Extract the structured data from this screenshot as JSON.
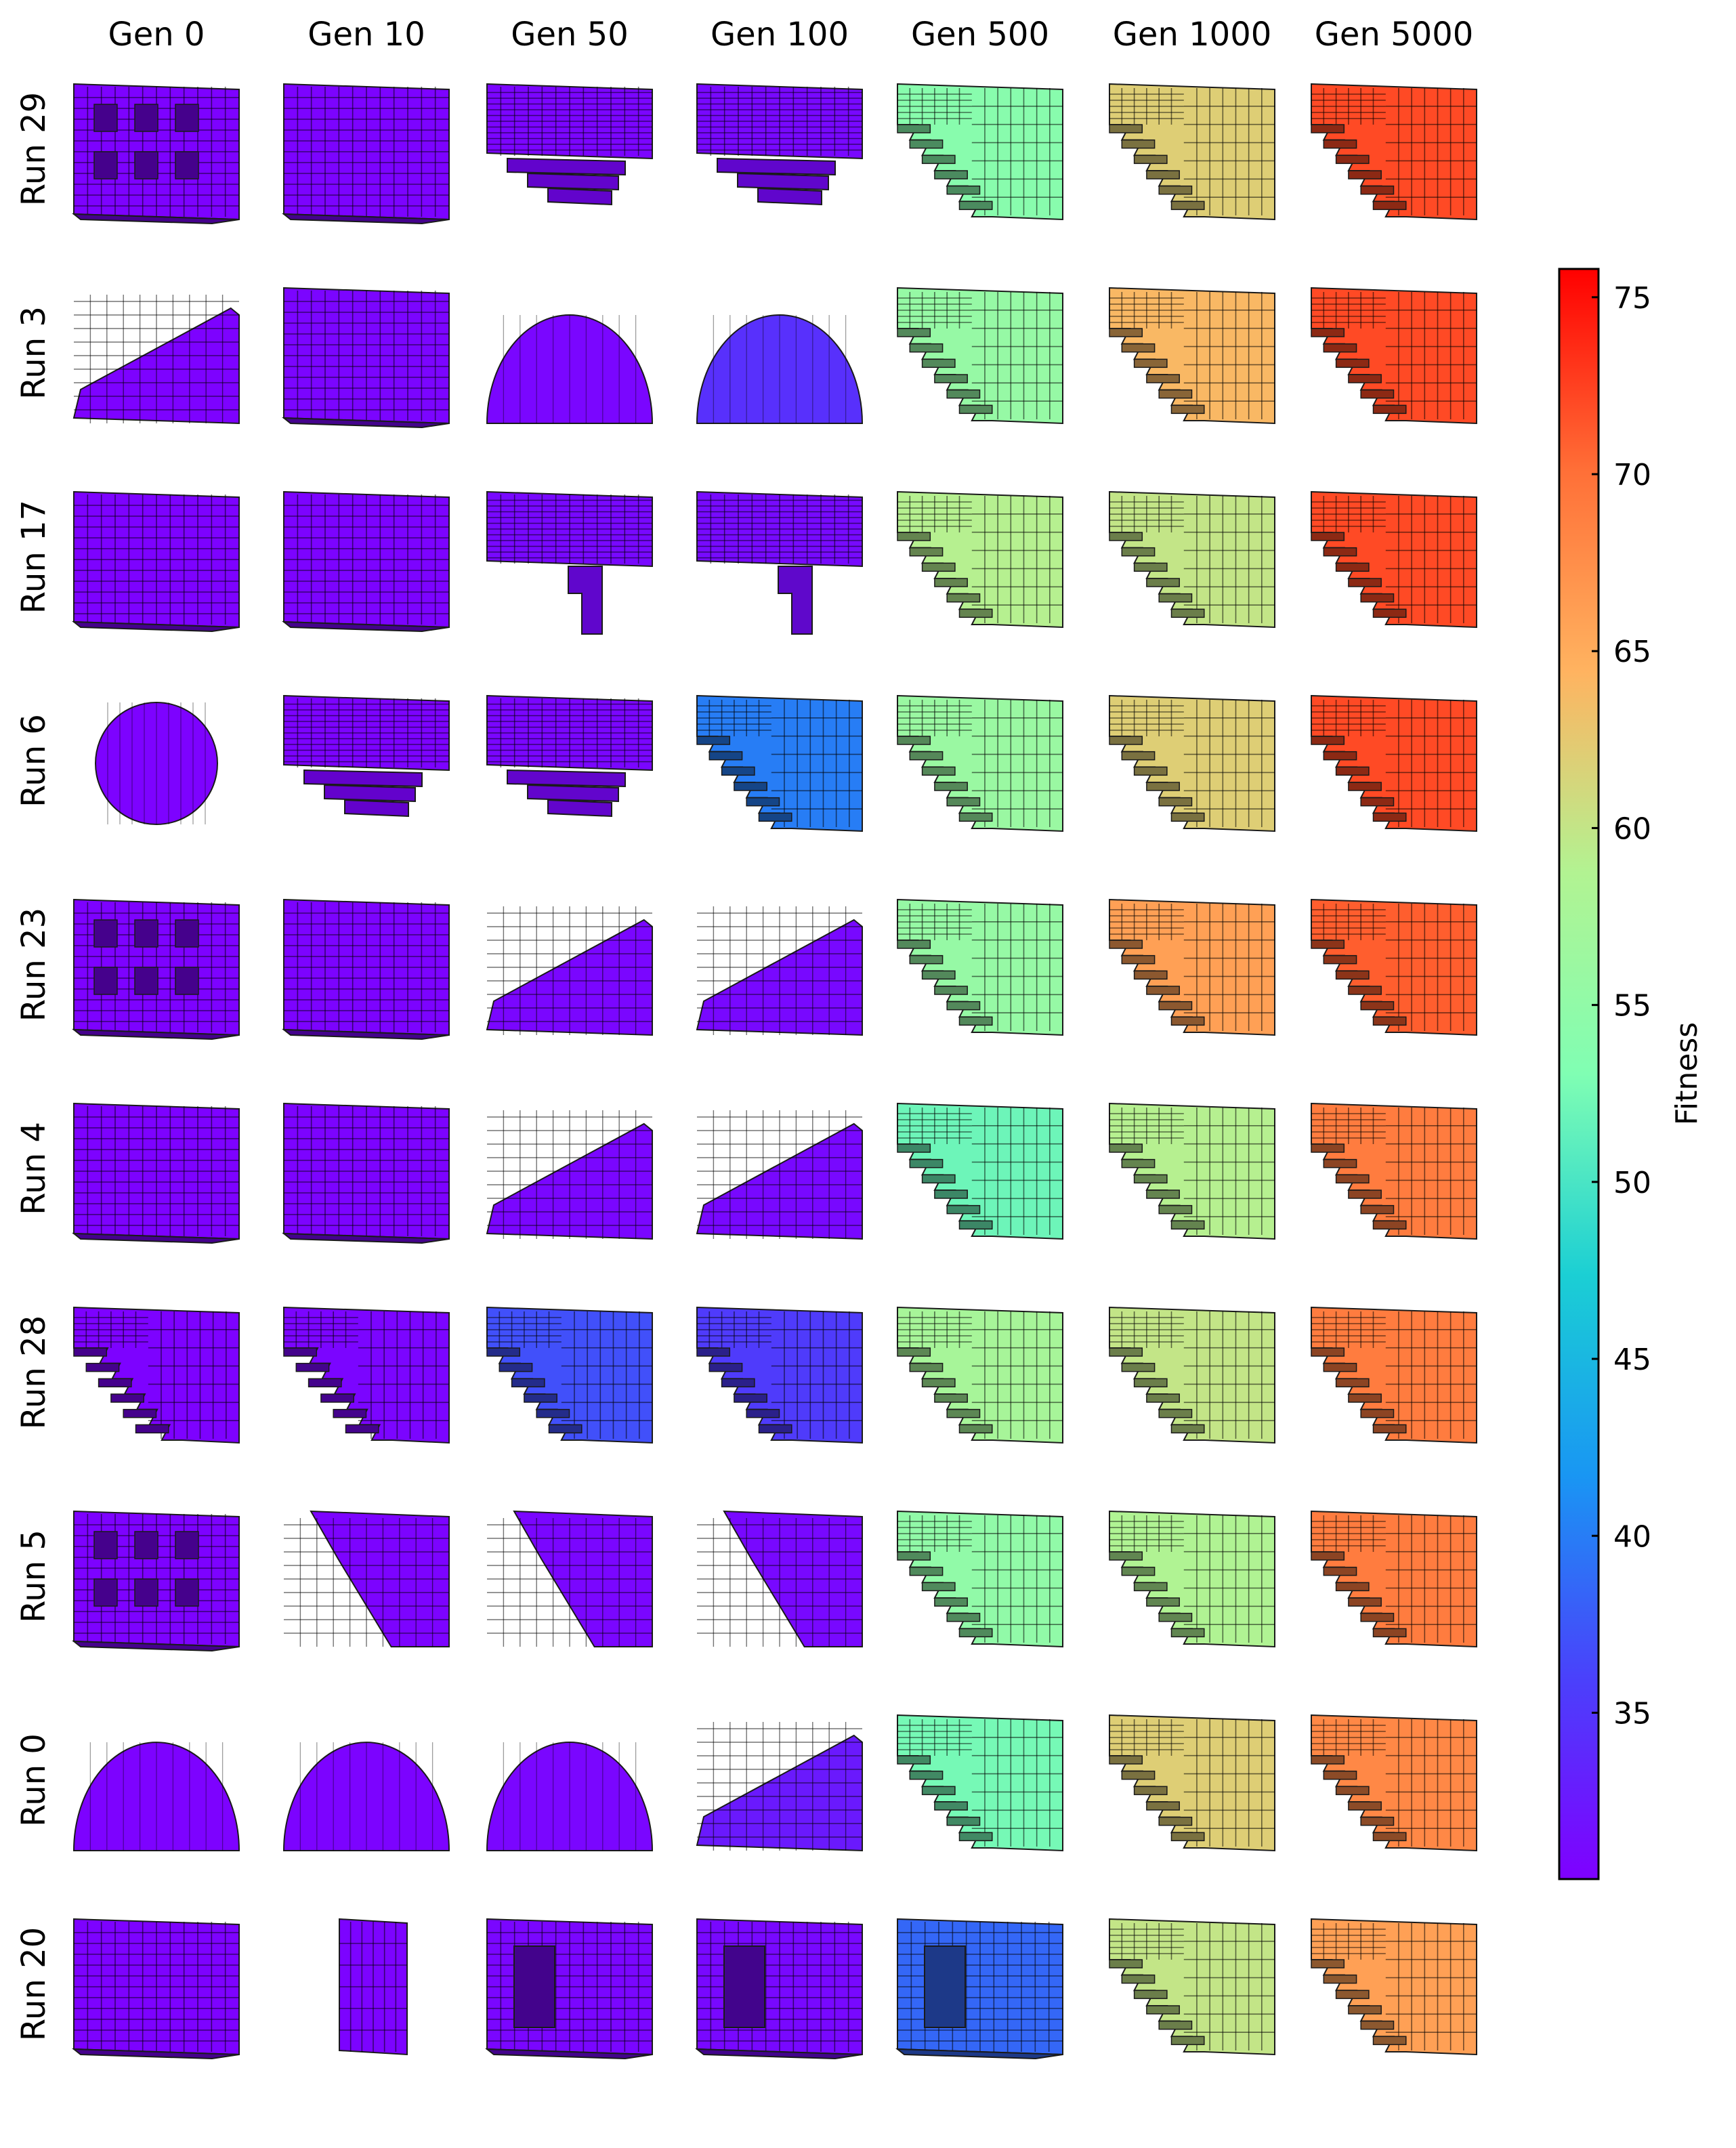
{
  "columns": [
    "Gen 0",
    "Gen 10",
    "Gen 50",
    "Gen 100",
    "Gen 500",
    "Gen 1000",
    "Gen 5000"
  ],
  "rows": [
    {
      "label": "Run 29",
      "cells": [
        {
          "fitness": 30.5,
          "shape": "holey-cube"
        },
        {
          "fitness": 30.6,
          "shape": "cube"
        },
        {
          "fitness": 30.7,
          "shape": "cube-hanging-steps"
        },
        {
          "fitness": 31.0,
          "shape": "cube-hanging-steps"
        },
        {
          "fitness": 54.0,
          "shape": "staircase-overhang"
        },
        {
          "fitness": 62.0,
          "shape": "staircase-overhang"
        },
        {
          "fitness": 72.0,
          "shape": "staircase-overhang"
        }
      ]
    },
    {
      "label": "Run 3",
      "cells": [
        {
          "fitness": 30.5,
          "shape": "ramp"
        },
        {
          "fitness": 30.7,
          "shape": "cube"
        },
        {
          "fitness": 30.8,
          "shape": "dome-quarter"
        },
        {
          "fitness": 34.5,
          "shape": "dome"
        },
        {
          "fitness": 55.5,
          "shape": "staircase-overhang"
        },
        {
          "fitness": 64.0,
          "shape": "staircase-overhang"
        },
        {
          "fitness": 72.0,
          "shape": "staircase-overhang"
        }
      ]
    },
    {
      "label": "Run 17",
      "cells": [
        {
          "fitness": 30.5,
          "shape": "cube"
        },
        {
          "fitness": 30.6,
          "shape": "cube"
        },
        {
          "fitness": 31.0,
          "shape": "cube-pillar"
        },
        {
          "fitness": 31.2,
          "shape": "cube-pillar"
        },
        {
          "fitness": 59.0,
          "shape": "staircase-overhang"
        },
        {
          "fitness": 60.0,
          "shape": "staircase-overhang"
        },
        {
          "fitness": 72.0,
          "shape": "staircase-overhang"
        }
      ]
    },
    {
      "label": "Run 6",
      "cells": [
        {
          "fitness": 30.5,
          "shape": "disc"
        },
        {
          "fitness": 30.6,
          "shape": "cube-hanging-steps"
        },
        {
          "fitness": 30.8,
          "shape": "cube-hanging-steps"
        },
        {
          "fitness": 40.0,
          "shape": "staircase-overhang"
        },
        {
          "fitness": 56.0,
          "shape": "staircase-overhang"
        },
        {
          "fitness": 62.0,
          "shape": "staircase-overhang"
        },
        {
          "fitness": 72.0,
          "shape": "staircase-overhang"
        }
      ]
    },
    {
      "label": "Run 23",
      "cells": [
        {
          "fitness": 30.5,
          "shape": "holey-cube"
        },
        {
          "fitness": 30.6,
          "shape": "cube"
        },
        {
          "fitness": 30.8,
          "shape": "ramp"
        },
        {
          "fitness": 31.0,
          "shape": "ramp"
        },
        {
          "fitness": 55.5,
          "shape": "staircase-overhang"
        },
        {
          "fitness": 66.0,
          "shape": "staircase-overhang"
        },
        {
          "fitness": 71.0,
          "shape": "staircase-overhang"
        }
      ]
    },
    {
      "label": "Run 4",
      "cells": [
        {
          "fitness": 30.5,
          "shape": "cube"
        },
        {
          "fitness": 30.6,
          "shape": "cube"
        },
        {
          "fitness": 30.8,
          "shape": "ramp"
        },
        {
          "fitness": 31.0,
          "shape": "ramp"
        },
        {
          "fitness": 52.0,
          "shape": "staircase-overhang"
        },
        {
          "fitness": 59.0,
          "shape": "staircase-overhang"
        },
        {
          "fitness": 69.0,
          "shape": "staircase-overhang"
        }
      ]
    },
    {
      "label": "Run 28",
      "cells": [
        {
          "fitness": 30.5,
          "shape": "inverted-stairs"
        },
        {
          "fitness": 30.7,
          "shape": "inverted-stairs"
        },
        {
          "fitness": 37.0,
          "shape": "staircase-overhang"
        },
        {
          "fitness": 35.5,
          "shape": "staircase-overhang"
        },
        {
          "fitness": 57.5,
          "shape": "staircase-overhang"
        },
        {
          "fitness": 60.0,
          "shape": "staircase-overhang"
        },
        {
          "fitness": 69.0,
          "shape": "staircase-overhang"
        }
      ]
    },
    {
      "label": "Run 5",
      "cells": [
        {
          "fitness": 30.5,
          "shape": "holey-cube"
        },
        {
          "fitness": 30.6,
          "shape": "wedge"
        },
        {
          "fitness": 30.8,
          "shape": "wedge"
        },
        {
          "fitness": 31.0,
          "shape": "wedge"
        },
        {
          "fitness": 55.0,
          "shape": "staircase-overhang"
        },
        {
          "fitness": 58.5,
          "shape": "staircase-overhang"
        },
        {
          "fitness": 69.0,
          "shape": "staircase-overhang"
        }
      ]
    },
    {
      "label": "Run 0",
      "cells": [
        {
          "fitness": 30.5,
          "shape": "dome"
        },
        {
          "fitness": 30.6,
          "shape": "dome"
        },
        {
          "fitness": 30.8,
          "shape": "dome"
        },
        {
          "fitness": 32.5,
          "shape": "ramp"
        },
        {
          "fitness": 52.5,
          "shape": "staircase-overhang"
        },
        {
          "fitness": 62.0,
          "shape": "staircase-overhang"
        },
        {
          "fitness": 68.0,
          "shape": "staircase-overhang"
        }
      ]
    },
    {
      "label": "Run 20",
      "cells": [
        {
          "fitness": 30.5,
          "shape": "cube"
        },
        {
          "fitness": 30.6,
          "shape": "slab"
        },
        {
          "fitness": 30.8,
          "shape": "cube-window"
        },
        {
          "fitness": 31.0,
          "shape": "cube-window"
        },
        {
          "fitness": 38.5,
          "shape": "cube-window"
        },
        {
          "fitness": 60.0,
          "shape": "staircase-overhang"
        },
        {
          "fitness": 66.0,
          "shape": "staircase-overhang"
        }
      ]
    }
  ],
  "colorbar": {
    "label": "Fitness",
    "min": 30.3,
    "max": 75.8,
    "ticks": [
      "35",
      "40",
      "45",
      "50",
      "55",
      "60",
      "65",
      "70",
      "75"
    ],
    "colormap": "rainbow"
  }
}
